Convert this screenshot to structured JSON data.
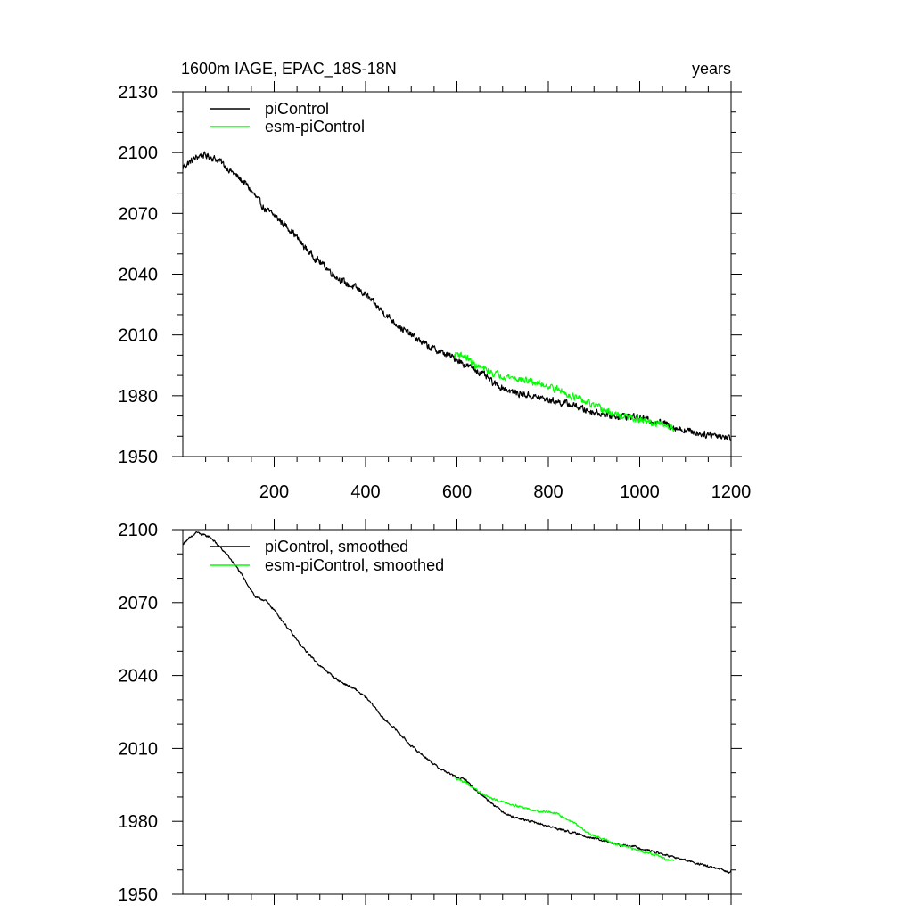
{
  "chart_data": [
    {
      "type": "line",
      "title": "1600m IAGE, EPAC_18S-18N",
      "title_right": "years",
      "xlabel": "",
      "ylabel": "",
      "xlim": [
        0,
        1200
      ],
      "ylim": [
        1950,
        2130
      ],
      "xticks": [
        200,
        400,
        600,
        800,
        1000,
        1200
      ],
      "yticks": [
        1950,
        1980,
        2010,
        2040,
        2070,
        2100,
        2130
      ],
      "legend_position": "top-left",
      "series": [
        {
          "name": "piControl",
          "color": "#000000",
          "x_range": [
            0,
            1200
          ],
          "noise": 2.6,
          "points": [
            [
              0,
              2093
            ],
            [
              20,
              2096
            ],
            [
              40,
              2099
            ],
            [
              60,
              2098
            ],
            [
              80,
              2096
            ],
            [
              100,
              2092
            ],
            [
              120,
              2088
            ],
            [
              140,
              2084
            ],
            [
              160,
              2078
            ],
            [
              180,
              2072
            ],
            [
              200,
              2069
            ],
            [
              220,
              2065
            ],
            [
              240,
              2061
            ],
            [
              260,
              2055
            ],
            [
              280,
              2050
            ],
            [
              300,
              2046
            ],
            [
              320,
              2042
            ],
            [
              340,
              2038
            ],
            [
              360,
              2035
            ],
            [
              380,
              2033
            ],
            [
              400,
              2030
            ],
            [
              420,
              2025
            ],
            [
              440,
              2021
            ],
            [
              460,
              2017
            ],
            [
              480,
              2013
            ],
            [
              500,
              2010
            ],
            [
              520,
              2007
            ],
            [
              540,
              2004
            ],
            [
              560,
              2002
            ],
            [
              580,
              2000
            ],
            [
              600,
              1998
            ],
            [
              620,
              1995
            ],
            [
              640,
              1993
            ],
            [
              660,
              1990
            ],
            [
              680,
              1986
            ],
            [
              700,
              1984
            ],
            [
              720,
              1982
            ],
            [
              740,
              1981
            ],
            [
              760,
              1980
            ],
            [
              780,
              1979
            ],
            [
              800,
              1978
            ],
            [
              820,
              1977
            ],
            [
              840,
              1976
            ],
            [
              860,
              1975
            ],
            [
              880,
              1973
            ],
            [
              900,
              1972
            ],
            [
              920,
              1971
            ],
            [
              940,
              1970
            ],
            [
              960,
              1970
            ],
            [
              980,
              1970
            ],
            [
              1000,
              1969
            ],
            [
              1020,
              1968
            ],
            [
              1040,
              1967
            ],
            [
              1060,
              1966
            ],
            [
              1080,
              1964
            ],
            [
              1100,
              1963
            ],
            [
              1120,
              1962
            ],
            [
              1140,
              1961
            ],
            [
              1160,
              1961
            ],
            [
              1180,
              1960
            ],
            [
              1200,
              1959
            ]
          ]
        },
        {
          "name": "esm-piControl",
          "color": "#00ff00",
          "x_range": [
            595,
            1075
          ],
          "noise": 2.6,
          "points": [
            [
              595,
              2000
            ],
            [
              600,
              2001
            ],
            [
              620,
              1999
            ],
            [
              640,
              1995
            ],
            [
              660,
              1993
            ],
            [
              680,
              1991
            ],
            [
              700,
              1990
            ],
            [
              720,
              1989
            ],
            [
              740,
              1988
            ],
            [
              760,
              1987
            ],
            [
              780,
              1986
            ],
            [
              800,
              1985
            ],
            [
              820,
              1983
            ],
            [
              840,
              1981
            ],
            [
              860,
              1979
            ],
            [
              880,
              1977
            ],
            [
              900,
              1975
            ],
            [
              920,
              1973
            ],
            [
              940,
              1971
            ],
            [
              960,
              1970
            ],
            [
              980,
              1969
            ],
            [
              1000,
              1968
            ],
            [
              1020,
              1967
            ],
            [
              1040,
              1966
            ],
            [
              1060,
              1965
            ],
            [
              1075,
              1964
            ]
          ]
        }
      ]
    },
    {
      "type": "line",
      "title": "",
      "xlabel": "",
      "ylabel": "",
      "xlim": [
        0,
        1200
      ],
      "ylim": [
        1950,
        2100
      ],
      "xticks": [
        200,
        400,
        600,
        800,
        1000,
        1200
      ],
      "yticks": [
        1950,
        1980,
        2010,
        2040,
        2070,
        2100
      ],
      "legend_position": "top-left",
      "series": [
        {
          "name": "piControl, smoothed",
          "color": "#000000",
          "x_range": [
            0,
            1200
          ],
          "noise": 0.7,
          "points": [
            [
              0,
              2094
            ],
            [
              10,
              2096
            ],
            [
              20,
              2097
            ],
            [
              30,
              2099
            ],
            [
              40,
              2098
            ],
            [
              60,
              2097
            ],
            [
              80,
              2093
            ],
            [
              100,
              2089
            ],
            [
              120,
              2084
            ],
            [
              140,
              2078
            ],
            [
              160,
              2072
            ],
            [
              180,
              2071
            ],
            [
              200,
              2067
            ],
            [
              220,
              2062
            ],
            [
              240,
              2057
            ],
            [
              260,
              2052
            ],
            [
              280,
              2048
            ],
            [
              300,
              2044
            ],
            [
              320,
              2041
            ],
            [
              340,
              2038
            ],
            [
              360,
              2036
            ],
            [
              380,
              2034
            ],
            [
              400,
              2031
            ],
            [
              420,
              2027
            ],
            [
              440,
              2022
            ],
            [
              460,
              2019
            ],
            [
              480,
              2015
            ],
            [
              500,
              2011
            ],
            [
              520,
              2008
            ],
            [
              540,
              2005
            ],
            [
              560,
              2002
            ],
            [
              580,
              2000
            ],
            [
              600,
              1998
            ],
            [
              620,
              1997
            ],
            [
              640,
              1993
            ],
            [
              660,
              1990
            ],
            [
              680,
              1987
            ],
            [
              700,
              1984
            ],
            [
              720,
              1982
            ],
            [
              740,
              1981
            ],
            [
              760,
              1980
            ],
            [
              780,
              1979
            ],
            [
              800,
              1978
            ],
            [
              820,
              1977
            ],
            [
              840,
              1976
            ],
            [
              860,
              1975
            ],
            [
              880,
              1974
            ],
            [
              900,
              1973
            ],
            [
              920,
              1972
            ],
            [
              940,
              1971
            ],
            [
              960,
              1970
            ],
            [
              980,
              1970
            ],
            [
              1000,
              1969
            ],
            [
              1020,
              1968
            ],
            [
              1040,
              1967
            ],
            [
              1060,
              1966
            ],
            [
              1080,
              1965
            ],
            [
              1100,
              1964
            ],
            [
              1120,
              1963
            ],
            [
              1140,
              1962
            ],
            [
              1160,
              1961
            ],
            [
              1180,
              1960
            ],
            [
              1195,
              1959
            ],
            [
              1200,
              1960
            ]
          ]
        },
        {
          "name": "esm-piControl, smoothed",
          "color": "#00ff00",
          "x_range": [
            595,
            1075
          ],
          "noise": 0.7,
          "points": [
            [
              595,
              1998
            ],
            [
              620,
              1996
            ],
            [
              640,
              1993
            ],
            [
              660,
              1991
            ],
            [
              680,
              1989
            ],
            [
              700,
              1988
            ],
            [
              720,
              1987
            ],
            [
              740,
              1986
            ],
            [
              760,
              1985
            ],
            [
              780,
              1984
            ],
            [
              800,
              1984
            ],
            [
              820,
              1983
            ],
            [
              840,
              1981
            ],
            [
              860,
              1979
            ],
            [
              880,
              1976
            ],
            [
              900,
              1974
            ],
            [
              920,
              1973
            ],
            [
              940,
              1971
            ],
            [
              960,
              1970
            ],
            [
              980,
              1969
            ],
            [
              1000,
              1968
            ],
            [
              1020,
              1967
            ],
            [
              1040,
              1966
            ],
            [
              1060,
              1964
            ],
            [
              1075,
              1964
            ]
          ]
        }
      ]
    }
  ]
}
